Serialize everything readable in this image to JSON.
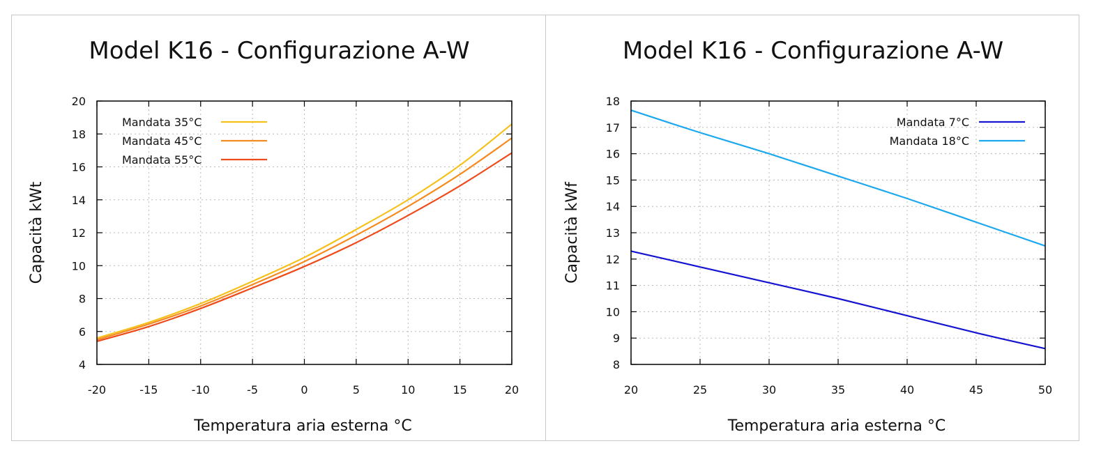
{
  "chart_data": [
    {
      "type": "line",
      "title": "Model K16 - Configurazione A-W",
      "xlabel": "Temperatura aria esterna °C",
      "ylabel": "Capacità kWt",
      "xlim": [
        -20,
        20
      ],
      "ylim": [
        4,
        20
      ],
      "xticks": [
        -20,
        -15,
        -10,
        -5,
        0,
        5,
        10,
        15,
        20
      ],
      "yticks": [
        4,
        6,
        8,
        10,
        12,
        14,
        16,
        18,
        20
      ],
      "grid": true,
      "legend": "top-left",
      "x": [
        -20,
        -15,
        -10,
        -5,
        0,
        5,
        10,
        15,
        20
      ],
      "series": [
        {
          "name": "Mandata 35°C",
          "color": "#f5c018",
          "values": [
            5.6,
            6.55,
            7.7,
            9.05,
            10.5,
            12.2,
            14.0,
            16.1,
            18.6
          ]
        },
        {
          "name": "Mandata 45°C",
          "color": "#f58a1f",
          "values": [
            5.5,
            6.45,
            7.55,
            8.85,
            10.25,
            11.85,
            13.6,
            15.55,
            17.75
          ]
        },
        {
          "name": "Mandata 55°C",
          "color": "#ee4a1a",
          "values": [
            5.4,
            6.3,
            7.4,
            8.65,
            9.95,
            11.4,
            13.05,
            14.85,
            16.85
          ]
        }
      ]
    },
    {
      "type": "line",
      "title": "Model K16 - Configurazione A-W",
      "xlabel": "Temperatura aria esterna °C",
      "ylabel": "Capacità kWf",
      "xlim": [
        20,
        50
      ],
      "ylim": [
        8,
        18
      ],
      "xticks": [
        20,
        25,
        30,
        35,
        40,
        45,
        50
      ],
      "yticks": [
        8,
        9,
        10,
        11,
        12,
        13,
        14,
        15,
        16,
        17,
        18
      ],
      "grid": true,
      "legend": "top-right",
      "x": [
        20,
        25,
        30,
        35,
        40,
        45,
        50
      ],
      "series": [
        {
          "name": "Mandata 7°C",
          "color": "#1414d2",
          "values": [
            12.3,
            11.7,
            11.1,
            10.5,
            9.85,
            9.2,
            8.6
          ]
        },
        {
          "name": "Mandata 18°C",
          "color": "#1ca8ee",
          "values": [
            17.65,
            16.8,
            16.0,
            15.15,
            14.3,
            13.4,
            12.5
          ]
        }
      ]
    }
  ]
}
